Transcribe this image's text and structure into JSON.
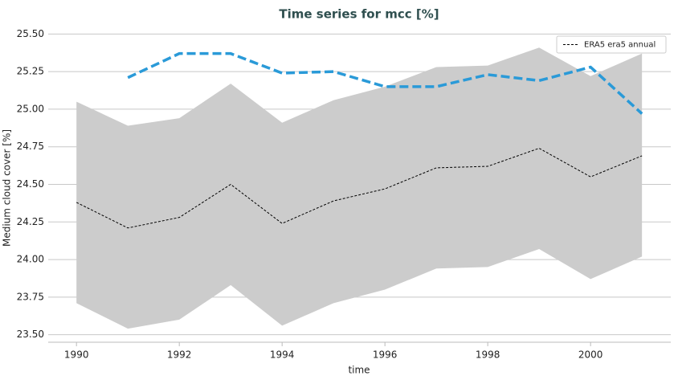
{
  "chart_data": {
    "type": "line",
    "title": "Time series for mcc [%]",
    "x_label": "time",
    "y_label": "Medium cloud cover [%]",
    "x": [
      1990,
      1991,
      1992,
      1993,
      1994,
      1995,
      1996,
      1997,
      1998,
      1999,
      2000,
      2001
    ],
    "series": [
      {
        "name": "ERA5 era5 annual",
        "color": "#000000",
        "dash": "dashed",
        "width": 1,
        "values": [
          24.38,
          24.21,
          24.28,
          24.5,
          24.24,
          24.39,
          24.47,
          24.61,
          24.62,
          24.74,
          24.55,
          24.69
        ]
      },
      {
        "color": "#2a9ad8",
        "dash": "dashed",
        "width": 3.5,
        "values": [
          null,
          25.21,
          25.37,
          25.37,
          25.24,
          25.25,
          25.15,
          25.15,
          25.23,
          25.19,
          25.28,
          24.97
        ]
      }
    ],
    "band": {
      "color": "#cccccc",
      "lower": [
        23.71,
        23.54,
        23.6,
        23.83,
        23.56,
        23.71,
        23.8,
        23.94,
        23.95,
        24.07,
        23.87,
        24.02
      ],
      "upper": [
        25.05,
        24.89,
        24.94,
        25.17,
        24.91,
        25.06,
        25.15,
        25.28,
        25.29,
        25.41,
        25.22,
        25.37
      ]
    },
    "xlim": [
      1989.45,
      2001.56
    ],
    "ylim": [
      23.45,
      25.55
    ],
    "xticks": [
      1990,
      1992,
      1994,
      1996,
      1998,
      2000
    ],
    "yticks": [
      {
        "value": 23.5,
        "label": "23.50"
      },
      23.75,
      {
        "value": 24,
        "label": "24.00"
      },
      24.25,
      {
        "value": 24.5,
        "label": "24.50"
      },
      24.75,
      {
        "value": 25,
        "label": "25.00"
      },
      25.25,
      {
        "value": 25.5,
        "label": "25.50"
      }
    ],
    "grid": true,
    "legend": "upper right"
  }
}
